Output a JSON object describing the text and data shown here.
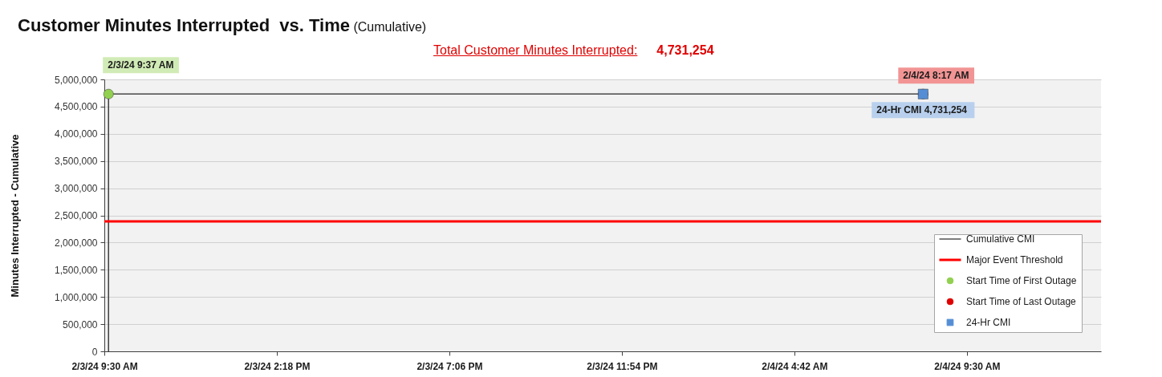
{
  "chart_data": {
    "type": "line",
    "title": "Customer Minutes Interrupted  vs. Time",
    "subtitle": "(Cumulative)",
    "ylabel": "Minutes Interrupted - Cumulative",
    "annotations": [
      "Total Customer Minutes Interrupted:",
      "4,731,254"
    ],
    "xlim": [
      "--02-03T09:30",
      "--02-04T13:14"
    ],
    "xticks": [
      {
        "value": "--02-03T09:30",
        "label": "2/3/24 9:30 AM"
      },
      {
        "value": "--02-03T14:18",
        "label": "2/3/24 2:18 PM"
      },
      {
        "value": "--02-03T19:06",
        "label": "2/3/24 7:06 PM"
      },
      {
        "value": "--02-03T23:54",
        "label": "2/3/24 11:54 PM"
      },
      {
        "value": "--02-04T04:42",
        "label": "2/4/24 4:42 AM"
      },
      {
        "value": "--02-04T09:30",
        "label": "2/4/24 9:30 AM"
      }
    ],
    "ylim": [
      0,
      5000000
    ],
    "yticks": [
      0,
      {
        "value": 500000,
        "label": "500,000"
      },
      {
        "value": 1000000,
        "label": "1,000,000"
      },
      {
        "value": 1500000,
        "label": "1,500,000"
      },
      {
        "value": 2000000,
        "label": "2,000,000"
      },
      {
        "value": 2500000,
        "label": "2,500,000"
      },
      {
        "value": 3000000,
        "label": "3,000,000"
      },
      {
        "value": 3500000,
        "label": "3,500,000"
      },
      {
        "value": 4000000,
        "label": "4,000,000"
      },
      {
        "value": 4500000,
        "label": "4,500,000"
      },
      {
        "value": 5000000,
        "label": "5,000,000"
      }
    ],
    "grid": "y",
    "legend": "bottom right",
    "series": [
      {
        "name": "Cumulative CMI",
        "type": "line",
        "color": "#262626",
        "x": [
          "--02-03T09:37",
          "--02-03T09:37",
          "--02-04T08:17"
        ],
        "values": [
          0,
          4731254,
          4731254
        ]
      },
      {
        "name": "Start Time of First Outage",
        "type": "scatter",
        "marker": "circle",
        "color": "#92d050",
        "x": [
          "--02-03T09:37"
        ],
        "values": [
          4731254
        ],
        "value_labels": [
          "2/3/24 9:37 AM"
        ]
      },
      {
        "name": "Start Time of Last Outage",
        "type": "scatter",
        "marker": "circle",
        "color": "#e00000",
        "x": [
          "--02-04T08:17"
        ],
        "values": [
          4731254
        ],
        "value_labels": [
          "2/4/24 8:17 AM"
        ]
      },
      {
        "name": "24-Hr CMI",
        "type": "scatter",
        "marker": "square",
        "color": "#558ed5",
        "x": [
          "--02-04T08:17"
        ],
        "values": [
          4731254
        ],
        "value_labels": [
          "24-Hr CMI  4,731,254"
        ]
      }
    ],
    "ref_lines": [
      {
        "axis": "y",
        "value": 2390000,
        "label": "Major Event Threshold",
        "color": "#ff0000"
      }
    ]
  }
}
